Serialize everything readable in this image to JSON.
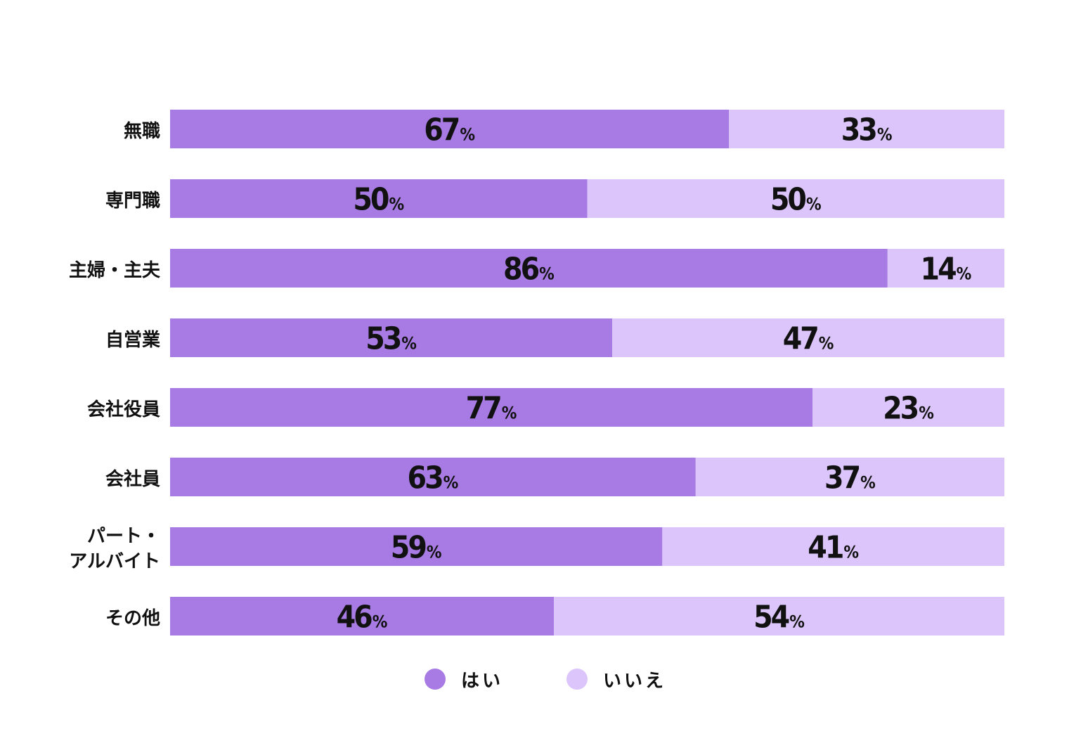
{
  "chart_data": {
    "type": "bar",
    "orientation": "horizontal",
    "stacked": true,
    "percent": true,
    "categories": [
      "無職",
      "専門職",
      "主婦・主夫",
      "自営業",
      "会社役員",
      "会社員",
      "パート・アルバイト",
      "その他"
    ],
    "category_lines": [
      [
        "無職"
      ],
      [
        "専門職"
      ],
      [
        "主婦・主夫"
      ],
      [
        "自営業"
      ],
      [
        "会社役員"
      ],
      [
        "会社員"
      ],
      [
        "パート・",
        "アルバイト"
      ],
      [
        "その他"
      ]
    ],
    "series": [
      {
        "name": "はい",
        "color": "#a87be4",
        "values": [
          67,
          50,
          86,
          53,
          77,
          63,
          59,
          46
        ]
      },
      {
        "name": "いいえ",
        "color": "#dcc5fa",
        "values": [
          33,
          50,
          14,
          47,
          23,
          37,
          41,
          54
        ]
      }
    ],
    "value_suffix": "%",
    "xlim": [
      0,
      100
    ],
    "legend_position": "bottom-center",
    "grid": false
  }
}
